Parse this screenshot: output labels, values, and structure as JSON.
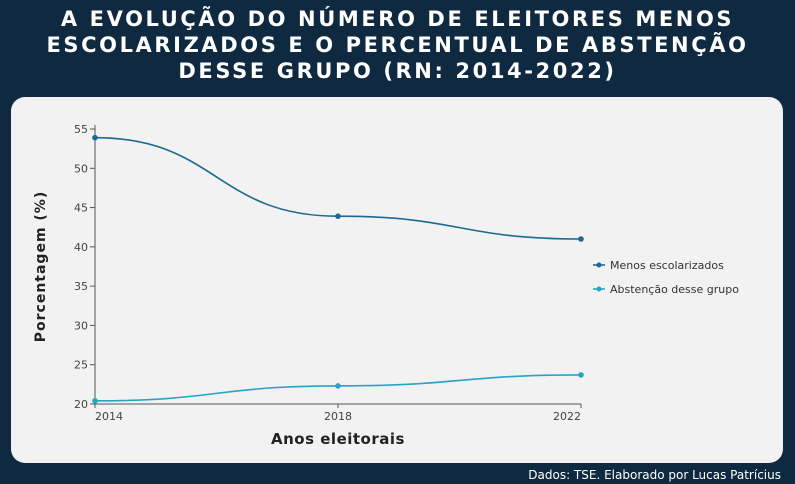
{
  "title_lines": [
    "A EVOLUÇÃO DO NÚMERO DE ELEITORES MENOS",
    "ESCOLARIZADOS E O PERCENTUAL DE ABSTENÇÃO",
    "DESSE GRUPO (RN: 2014-2022)"
  ],
  "source": "Dados: TSE. Elaborado por Lucas Patrícius",
  "colors": {
    "background": "#0f2a40",
    "card": "#f2f2f2",
    "series1": "#1b6a93",
    "series2": "#27a3c6"
  },
  "chart_data": {
    "type": "line",
    "title": "A EVOLUÇÃO DO NÚMERO DE ELEITORES MENOS ESCOLARIZADOS E O PERCENTUAL DE ABSTENÇÃO DESSE GRUPO (RN: 2014-2022)",
    "xlabel": "Anos eleitorais",
    "ylabel": "Porcentagem (%)",
    "x": [
      "2014",
      "2018",
      "2022"
    ],
    "ylim": [
      20,
      55
    ],
    "yticks": [
      20,
      25,
      30,
      35,
      40,
      45,
      50,
      55
    ],
    "grid": false,
    "legend_position": "right",
    "series": [
      {
        "name": "Menos escolarizados",
        "values": [
          53.9,
          43.9,
          41.0
        ],
        "color": "#1b6a93"
      },
      {
        "name": "Abstenção desse grupo",
        "values": [
          20.4,
          22.3,
          23.7
        ],
        "color": "#27a3c6"
      }
    ]
  }
}
